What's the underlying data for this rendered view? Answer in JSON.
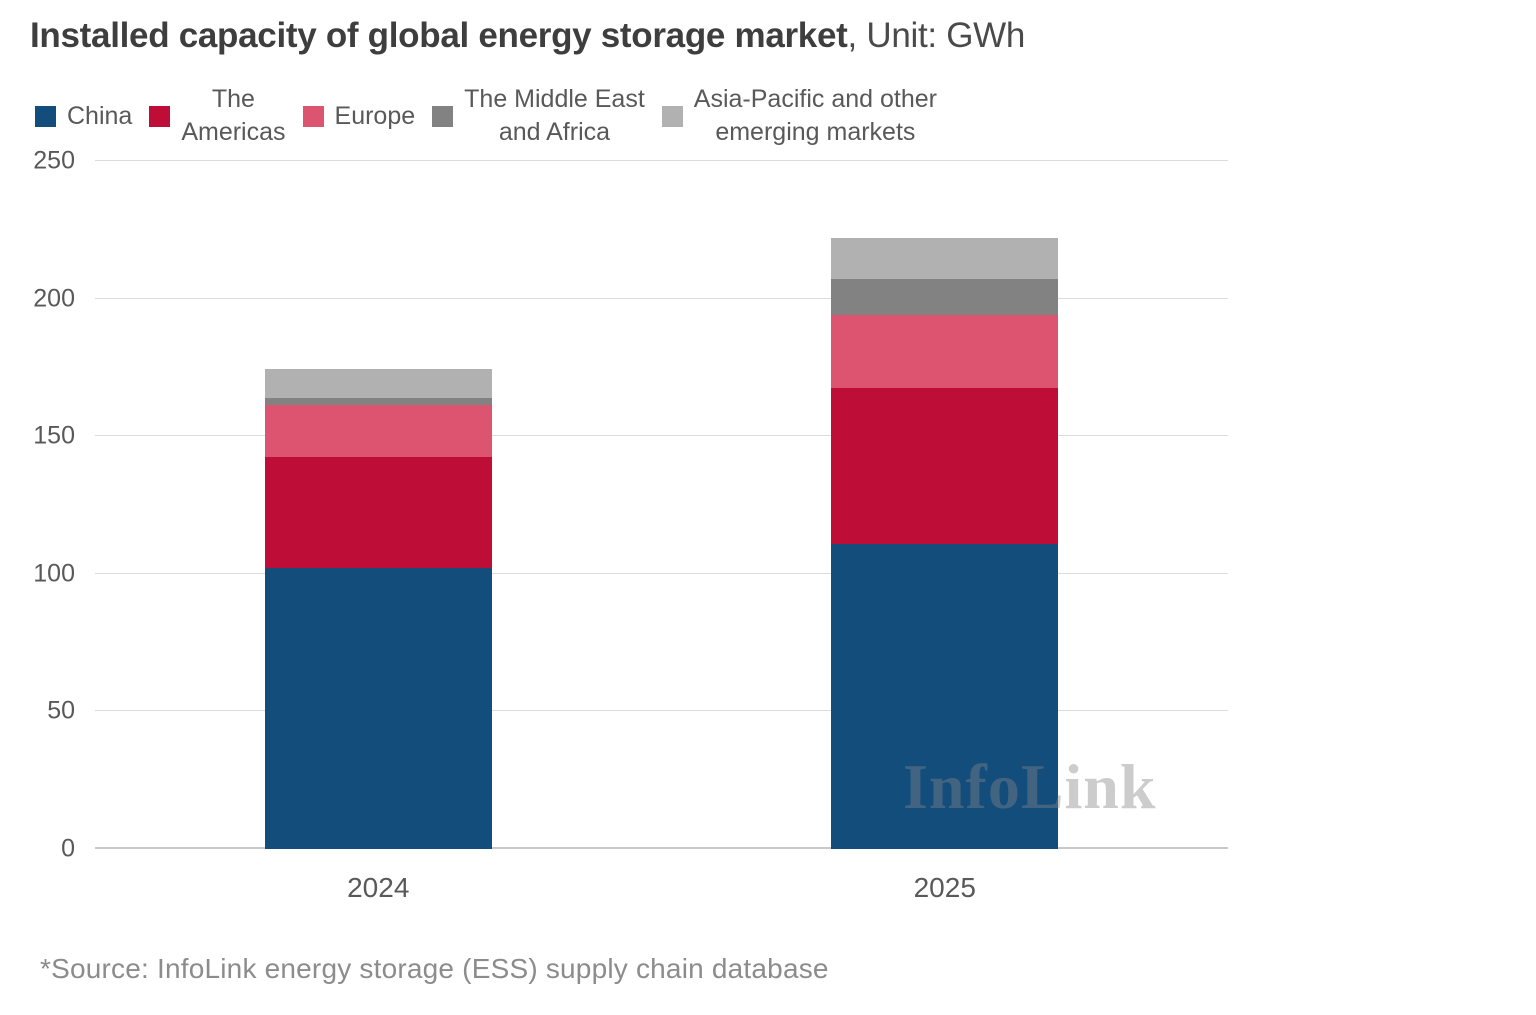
{
  "title": {
    "main": "Installed capacity of global energy storage market",
    "suffix": ", Unit: GWh"
  },
  "legend": {
    "items": [
      {
        "label": "China",
        "display": "China",
        "color": "#134D7C"
      },
      {
        "label": "The Americas",
        "display": "The\nAmericas",
        "color": "#BE0E38"
      },
      {
        "label": "Europe",
        "display": "Europe",
        "color": "#DC5470"
      },
      {
        "label": "The Middle East and Africa",
        "display": "The Middle East\nand Africa",
        "color": "#828282"
      },
      {
        "label": "Asia-Pacific and other emerging markets",
        "display": "Asia-Pacific and other\nemerging markets",
        "color": "#B1B1B1"
      }
    ]
  },
  "watermark": "InfoLink",
  "source_note": "*Source: InfoLink energy storage (ESS) supply chain database",
  "colors": {
    "china": "#134D7C",
    "americas": "#BE0E38",
    "europe": "#DC5470",
    "middle_east_africa": "#828282",
    "asia_pacific_other": "#B1B1B1",
    "grid": "#DCDCDC",
    "zero_line": "#C9C9C9",
    "title_text": "#3E3E3E",
    "axis_text": "#595959",
    "source_text": "#8C8C8C",
    "background": "#FFFFFF"
  },
  "chart_data": {
    "type": "bar",
    "stacked": true,
    "title": "Installed capacity of global energy storage market",
    "unit": "GWh",
    "categories": [
      "2024",
      "2025"
    ],
    "series": [
      {
        "name": "China",
        "color": "#134D7C",
        "values": [
          102,
          111
        ]
      },
      {
        "name": "The Americas",
        "color": "#BE0E38",
        "values": [
          40.5,
          56.5
        ]
      },
      {
        "name": "Europe",
        "color": "#DC5470",
        "values": [
          19,
          26.5
        ]
      },
      {
        "name": "The Middle East and Africa",
        "color": "#828282",
        "values": [
          2.5,
          13
        ]
      },
      {
        "name": "Asia-Pacific and other emerging markets",
        "color": "#B1B1B1",
        "values": [
          10.5,
          15
        ]
      }
    ],
    "ylim": [
      0,
      250
    ],
    "yticks": [
      0,
      50,
      100,
      150,
      200,
      250
    ],
    "grid": true,
    "legend_position": "top",
    "bar_width_pct": 20
  }
}
